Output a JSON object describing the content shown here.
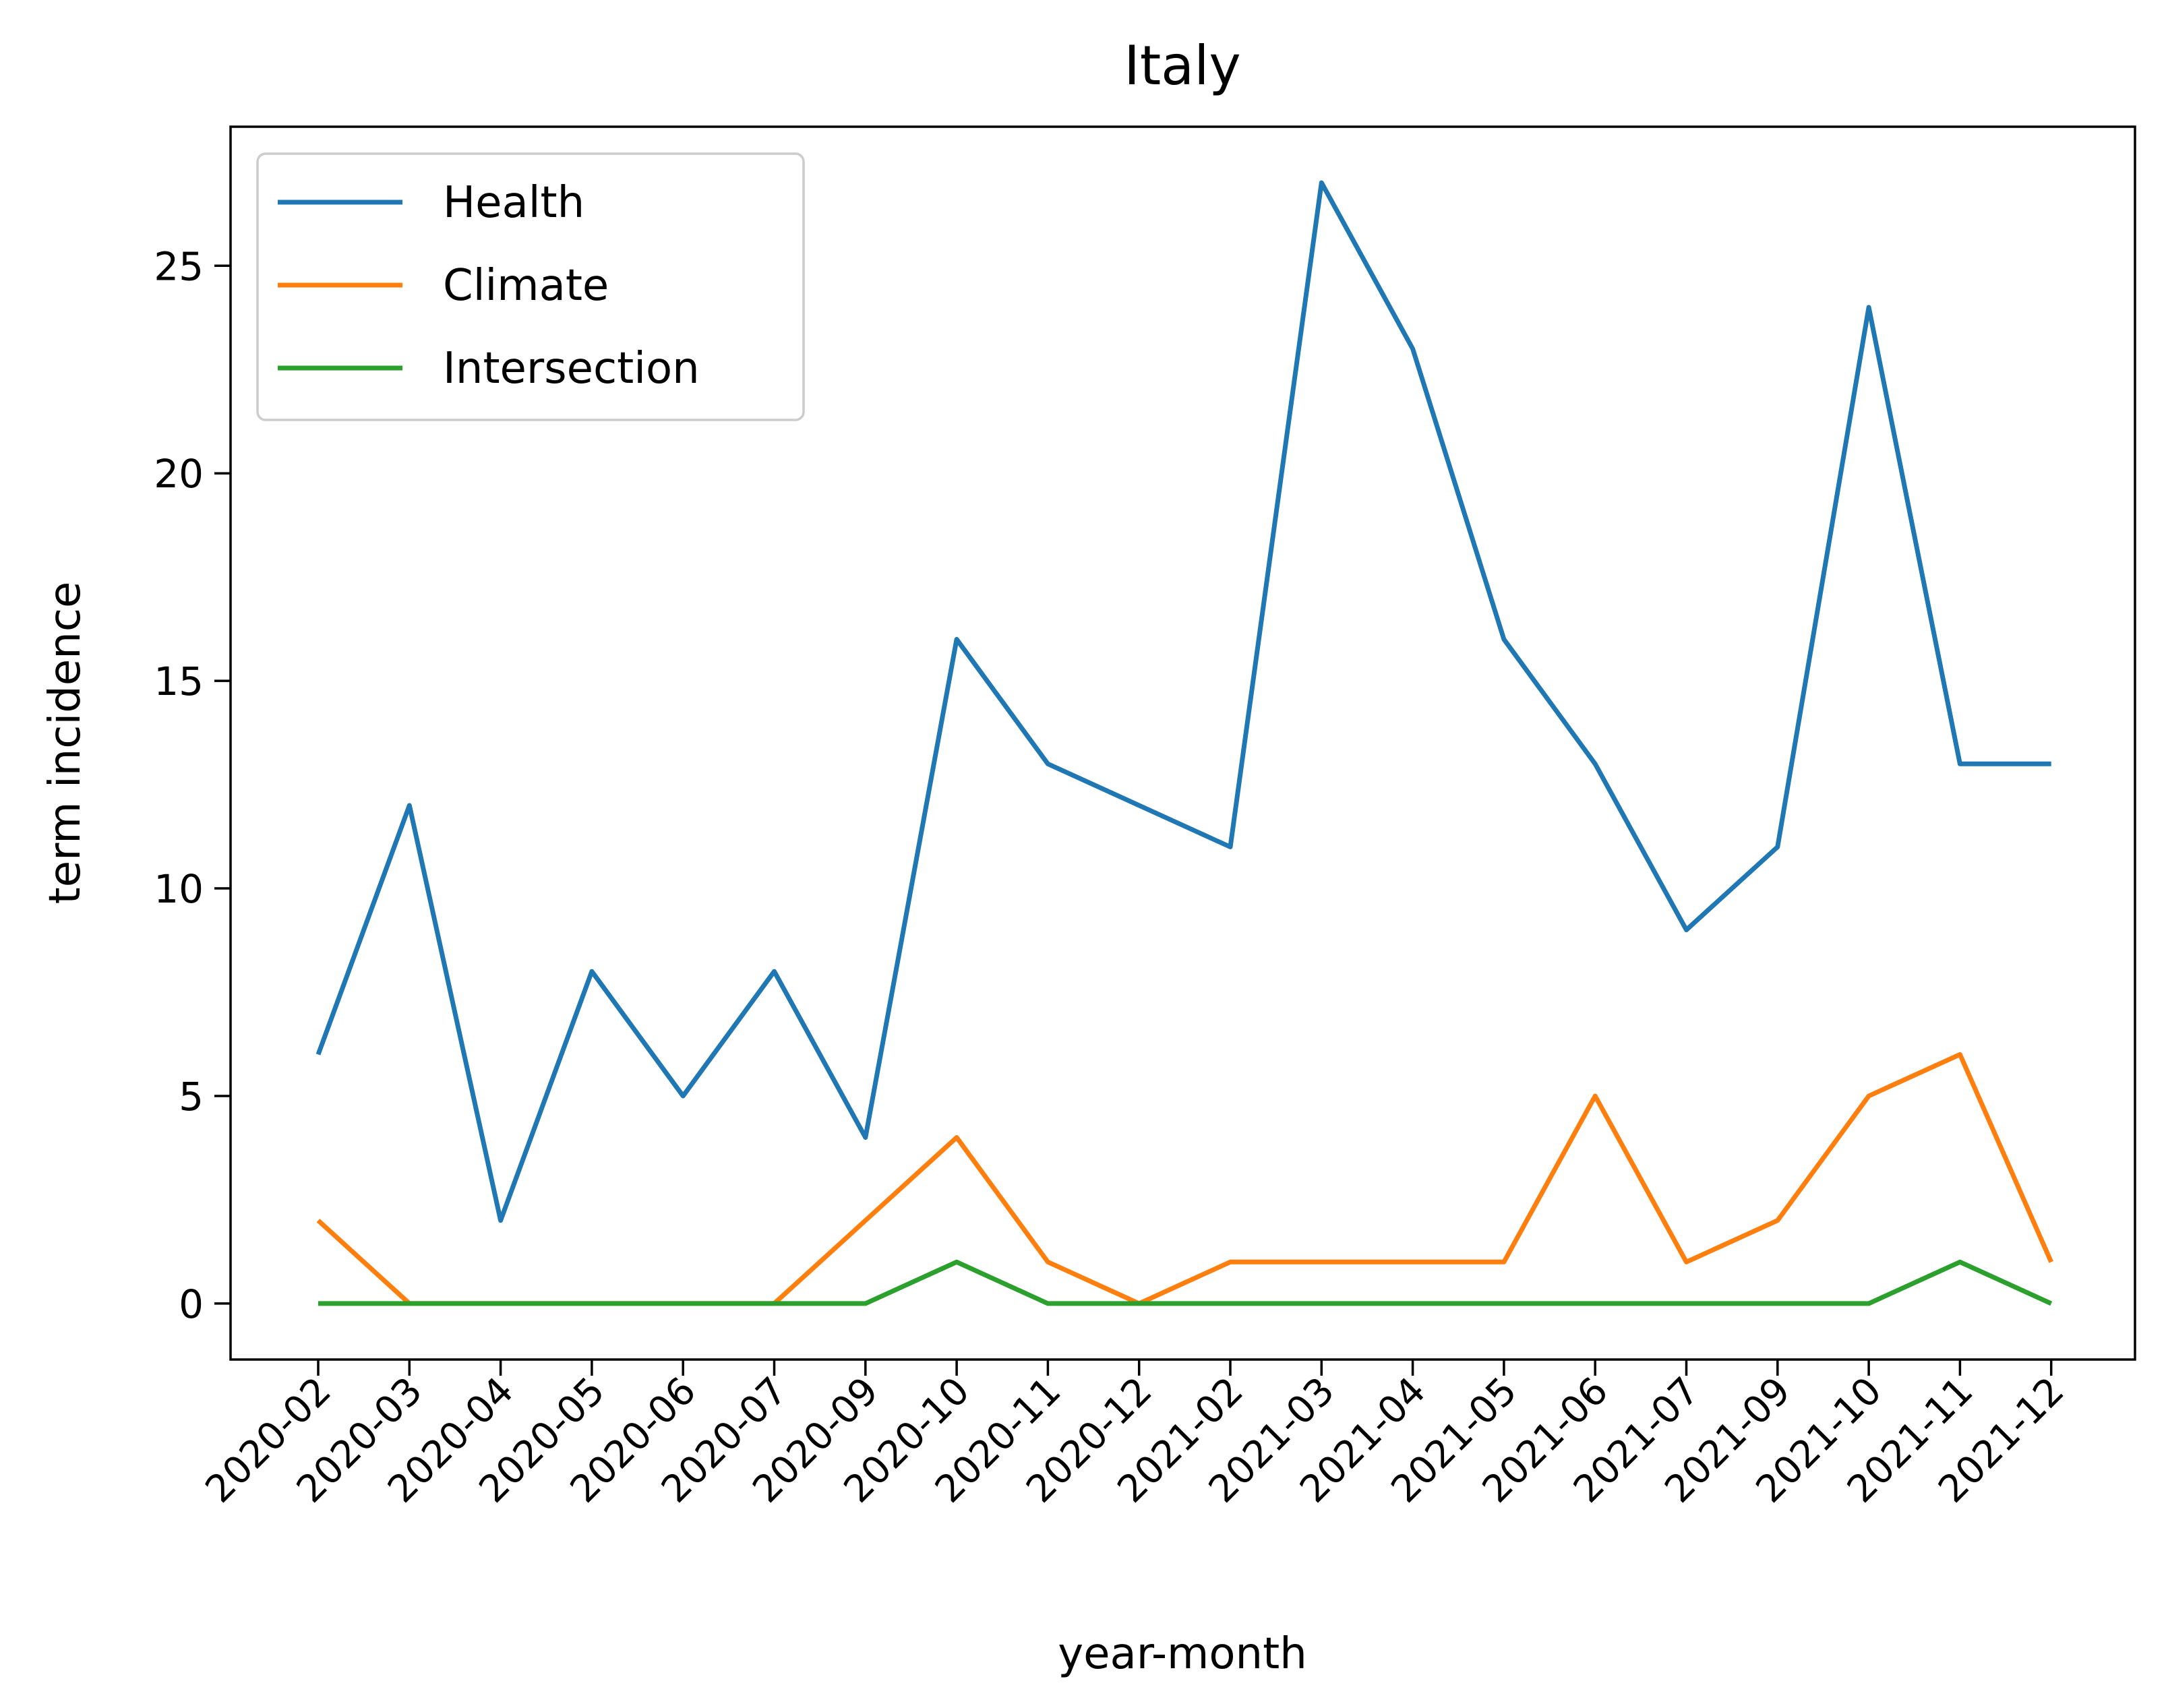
{
  "chart_data": {
    "type": "line",
    "title": "Italy",
    "xlabel": "year-month",
    "ylabel": "term incidence",
    "categories": [
      "2020-02",
      "2020-03",
      "2020-04",
      "2020-05",
      "2020-06",
      "2020-07",
      "2020-09",
      "2020-10",
      "2020-11",
      "2020-12",
      "2021-02",
      "2021-03",
      "2021-04",
      "2021-05",
      "2021-06",
      "2021-07",
      "2021-09",
      "2021-10",
      "2021-11",
      "2021-12"
    ],
    "series": [
      {
        "name": "Health",
        "color": "#1f77b4",
        "values": [
          6,
          12,
          2,
          8,
          5,
          8,
          4,
          16,
          13,
          12,
          11,
          27,
          23,
          16,
          13,
          9,
          11,
          24,
          13,
          13
        ]
      },
      {
        "name": "Climate",
        "color": "#ff7f0e",
        "values": [
          2,
          0,
          0,
          0,
          0,
          0,
          2,
          4,
          1,
          0,
          1,
          1,
          1,
          1,
          5,
          1,
          2,
          5,
          6,
          1
        ]
      },
      {
        "name": "Intersection",
        "color": "#2ca02c",
        "values": [
          0,
          0,
          0,
          0,
          0,
          0,
          0,
          1,
          0,
          0,
          0,
          0,
          0,
          0,
          0,
          0,
          0,
          0,
          1,
          0
        ]
      }
    ],
    "yticks": [
      0,
      5,
      10,
      15,
      20,
      25
    ],
    "ylim": [
      -1.35,
      28.35
    ],
    "grid": false,
    "legend": "top-left"
  }
}
